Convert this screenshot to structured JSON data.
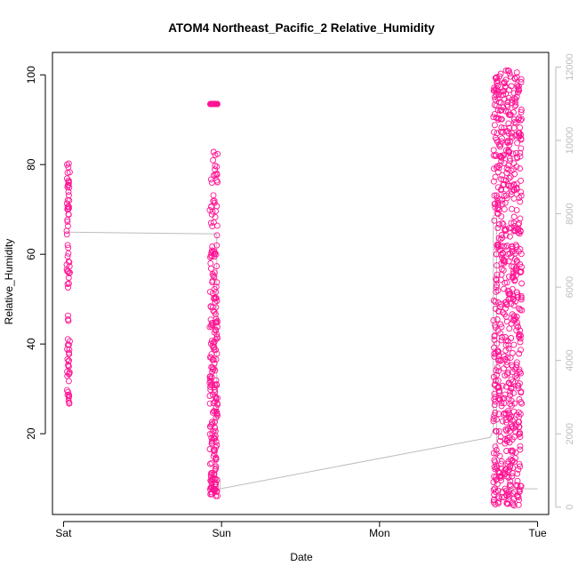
{
  "chart_data": {
    "type": "scatter",
    "title": "ATOM4 Northeast_Pacific_2 Relative_Humidity",
    "xlabel": "Date",
    "ylabel": "Relative_Humidity",
    "x_ticks": [
      "Sat",
      "Sun",
      "Mon",
      "Tue"
    ],
    "xlim_days": [
      -0.07,
      3.07
    ],
    "ylim": [
      2,
      105
    ],
    "y_ticks": [
      20,
      40,
      60,
      80,
      100
    ],
    "y2lim": [
      -200,
      12400
    ],
    "y2_ticks": [
      0,
      2000,
      4000,
      6000,
      8000,
      10000,
      12000
    ],
    "grid": false,
    "colors": {
      "points": "#ff1493",
      "secondary_line": "#bdbdbd",
      "secondary_axis": "#bdbdbd",
      "axis": "#000000"
    },
    "secondary_line": [
      [
        0.02,
        7500
      ],
      [
        0.97,
        7450
      ],
      [
        0.97,
        720
      ],
      [
        0.99,
        720
      ],
      [
        0.99,
        500
      ],
      [
        2.7,
        1900
      ],
      [
        2.72,
        2100
      ],
      [
        2.72,
        7950
      ],
      [
        2.74,
        7950
      ],
      [
        2.74,
        500
      ],
      [
        3.0,
        500
      ]
    ],
    "clusters": [
      {
        "x_center": 0.03,
        "x_width": 0.02,
        "n": 80,
        "y_segments": [
          [
            25,
            35
          ],
          [
            35,
            47
          ],
          [
            50,
            62
          ],
          [
            62,
            72
          ],
          [
            72,
            81
          ]
        ]
      },
      {
        "x_center": 0.95,
        "x_width": 0.05,
        "n": 260,
        "y_segments": [
          [
            6,
            10
          ],
          [
            10,
            20
          ],
          [
            20,
            30
          ],
          [
            30,
            40
          ],
          [
            40,
            50
          ],
          [
            50,
            62
          ],
          [
            64,
            83
          ],
          [
            93.5,
            93.5
          ]
        ]
      },
      {
        "x_center": 2.81,
        "x_width": 0.18,
        "n": 700,
        "y_segments": [
          [
            4,
            15
          ],
          [
            15,
            30
          ],
          [
            30,
            45
          ],
          [
            45,
            60
          ],
          [
            60,
            75
          ],
          [
            75,
            89
          ],
          [
            89,
            101
          ]
        ]
      }
    ]
  }
}
